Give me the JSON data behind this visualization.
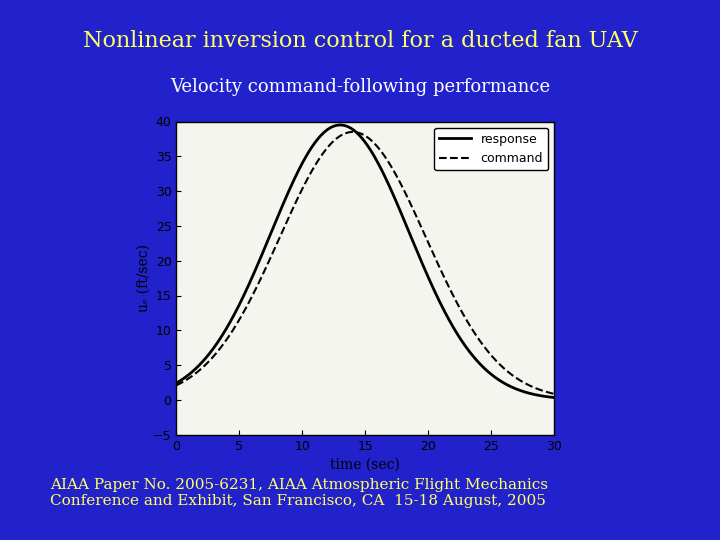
{
  "bg_color": "#2222cc",
  "title": "Nonlinear inversion control for a ducted fan UAV",
  "title_color": "#ffff66",
  "title_fontsize": 16,
  "subtitle": "Velocity command-following performance",
  "subtitle_color": "#ffffff",
  "subtitle_fontsize": 13,
  "footer_line1": "AIAA Paper No. 2005-6231, AIAA Atmospheric Flight Mechanics",
  "footer_line2": "Conference and Exhibit, San Francisco, CA  15-18 August, 2005",
  "footer_color": "#ffff66",
  "footer_fontsize": 11,
  "plot_bg": "#f5f5f0",
  "xlabel": "time (sec)",
  "ylabel": "uₑ (ft/sec)",
  "xlim": [
    0,
    30
  ],
  "ylim": [
    -5,
    40
  ],
  "xticks": [
    0,
    5,
    10,
    15,
    20,
    25,
    30
  ],
  "yticks": [
    -5,
    0,
    5,
    10,
    15,
    20,
    25,
    30,
    35,
    40
  ],
  "response_color": "#000000",
  "command_color": "#000000",
  "t_peak_response": 13.0,
  "t_peak_command": 14.0,
  "amplitude_response": 39.5,
  "amplitude_command": 38.5,
  "sigma_response": 5.5,
  "sigma_command": 5.8
}
